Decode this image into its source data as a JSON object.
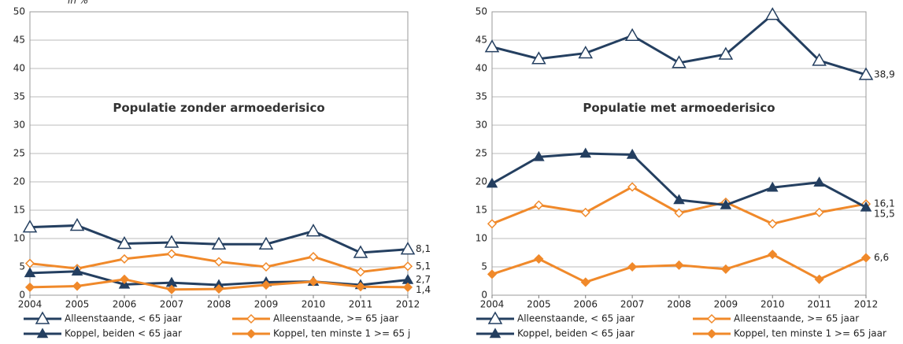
{
  "chart_data": [
    {
      "type": "line",
      "title": "Populatie zonder armoederisico",
      "ylabel": "in %",
      "categories": [
        "2004",
        "2005",
        "2006",
        "2007",
        "2008",
        "2009",
        "2010",
        "2011",
        "2012"
      ],
      "ylim": [
        0,
        50
      ],
      "yticks": [
        0,
        5,
        10,
        15,
        20,
        25,
        30,
        35,
        40,
        45,
        50
      ],
      "grid": true,
      "series": [
        {
          "name": "Alleenstaande, < 65 jaar",
          "color": "#243f60",
          "marker": "triangle-open",
          "values": [
            12.0,
            12.3,
            9.1,
            9.3,
            9.0,
            9.0,
            11.3,
            7.5,
            8.1
          ],
          "value_labels": [
            null,
            null,
            null,
            null,
            null,
            null,
            null,
            null,
            "8,1"
          ]
        },
        {
          "name": "Alleenstaande, >= 65 jaar",
          "color": "#f0892a",
          "marker": "diamond-open",
          "values": [
            5.6,
            4.7,
            6.4,
            7.3,
            5.9,
            5.0,
            6.8,
            4.1,
            5.1
          ],
          "value_labels": [
            null,
            null,
            null,
            null,
            null,
            null,
            null,
            null,
            "5,1"
          ]
        },
        {
          "name": "Koppel, beiden < 65 jaar",
          "color": "#243f60",
          "marker": "triangle",
          "values": [
            3.9,
            4.2,
            1.9,
            2.2,
            1.8,
            2.3,
            2.4,
            1.8,
            2.7
          ],
          "value_labels": [
            null,
            null,
            null,
            null,
            null,
            null,
            null,
            null,
            "2,7"
          ]
        },
        {
          "name": "Koppel, ten minste 1 >= 65 j",
          "color": "#f0892a",
          "marker": "diamond",
          "values": [
            1.4,
            1.6,
            2.8,
            1.0,
            1.1,
            1.8,
            2.4,
            1.5,
            1.4
          ],
          "value_labels": [
            null,
            null,
            null,
            null,
            null,
            null,
            null,
            null,
            "1,4"
          ]
        }
      ]
    },
    {
      "type": "line",
      "title": "Populatie met armoederisico",
      "categories": [
        "2004",
        "2005",
        "2006",
        "2007",
        "2008",
        "2009",
        "2010",
        "2011",
        "2012"
      ],
      "ylim": [
        0,
        50
      ],
      "yticks": [
        0,
        5,
        10,
        15,
        20,
        25,
        30,
        35,
        40,
        45,
        50
      ],
      "grid": true,
      "series": [
        {
          "name": "Alleenstaande, < 65 jaar",
          "color": "#243f60",
          "marker": "triangle-open",
          "values": [
            43.8,
            41.7,
            42.7,
            45.8,
            41.0,
            42.5,
            49.5,
            41.4,
            38.9
          ],
          "value_labels": [
            null,
            null,
            null,
            null,
            null,
            null,
            null,
            null,
            "38,9"
          ]
        },
        {
          "name": "Alleenstaande, >= 65 jaar",
          "color": "#f0892a",
          "marker": "diamond-open",
          "values": [
            12.6,
            15.9,
            14.6,
            19.1,
            14.5,
            16.4,
            12.6,
            14.6,
            16.1
          ],
          "value_labels": [
            null,
            null,
            null,
            null,
            null,
            null,
            null,
            null,
            "16,1"
          ]
        },
        {
          "name": "Koppel, beiden < 65 jaar",
          "color": "#243f60",
          "marker": "triangle",
          "values": [
            19.7,
            24.4,
            25.0,
            24.8,
            16.8,
            15.9,
            19.0,
            19.9,
            15.5
          ],
          "value_labels": [
            null,
            null,
            null,
            null,
            null,
            null,
            null,
            null,
            "15,5"
          ]
        },
        {
          "name": "Koppel, ten minste 1 >= 65 jaar",
          "color": "#f0892a",
          "marker": "diamond",
          "values": [
            3.7,
            6.4,
            2.3,
            5.0,
            5.3,
            4.6,
            7.2,
            2.8,
            6.6
          ],
          "value_labels": [
            null,
            null,
            null,
            null,
            null,
            null,
            null,
            null,
            "6,6"
          ]
        }
      ]
    }
  ]
}
